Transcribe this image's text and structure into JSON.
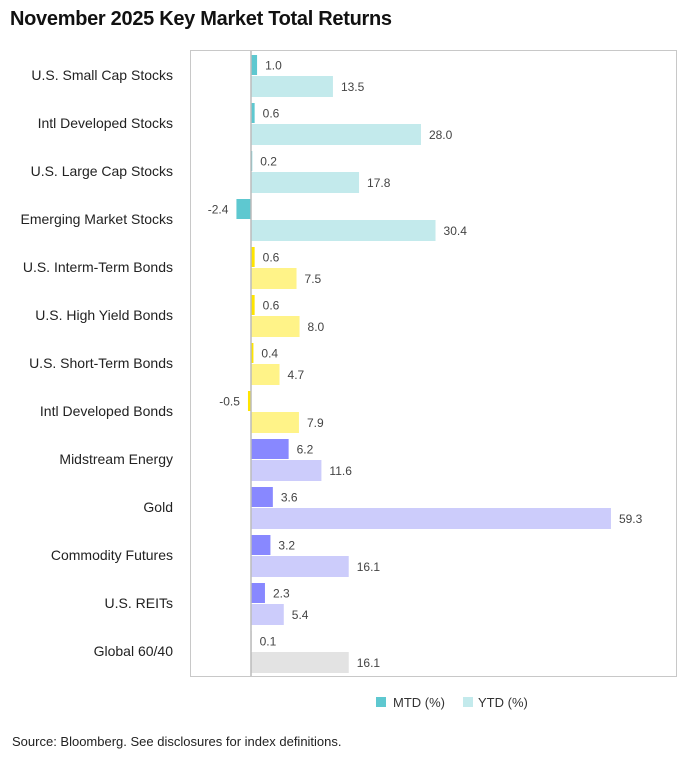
{
  "chart_data": {
    "type": "bar",
    "orientation": "horizontal",
    "title": "November 2025 Key Market Total Returns",
    "categories": [
      "U.S. Small Cap Stocks",
      "Intl Developed Stocks",
      "U.S. Large Cap Stocks",
      "Emerging Market Stocks",
      "U.S. Interm-Term Bonds",
      "U.S. High Yield Bonds",
      "U.S. Short-Term Bonds",
      "Intl Developed Bonds",
      "Midstream Energy",
      "Gold",
      "Commodity Futures",
      "U.S. REITs",
      "Global 60/40"
    ],
    "groups": [
      "equity",
      "equity",
      "equity",
      "equity",
      "bond",
      "bond",
      "bond",
      "bond",
      "real",
      "real",
      "real",
      "real",
      "blend"
    ],
    "series": [
      {
        "name": "MTD (%)",
        "values": [
          1.0,
          0.6,
          0.2,
          -2.4,
          0.6,
          0.6,
          0.4,
          -0.5,
          6.2,
          3.6,
          3.2,
          2.3,
          0.1
        ]
      },
      {
        "name": "YTD (%)",
        "values": [
          13.5,
          28.0,
          17.8,
          30.4,
          7.5,
          8.0,
          4.7,
          7.9,
          11.6,
          59.3,
          16.1,
          5.4,
          16.1
        ]
      }
    ],
    "xlim": [
      -10,
      70
    ],
    "grid": false,
    "legend_position": "bottom-right"
  },
  "colors": {
    "equity": {
      "mtd": "#5ec8d0",
      "ytd": "#c3eaec"
    },
    "bond": {
      "mtd": "#ffe500",
      "ytd": "#fff388"
    },
    "real": {
      "mtd": "#8888ff",
      "ytd": "#ccccfb"
    },
    "blend": {
      "mtd": "#bdbdbd",
      "ytd": "#e3e3e3"
    }
  },
  "source": "Source: Bloomberg. See disclosures for index definitions."
}
